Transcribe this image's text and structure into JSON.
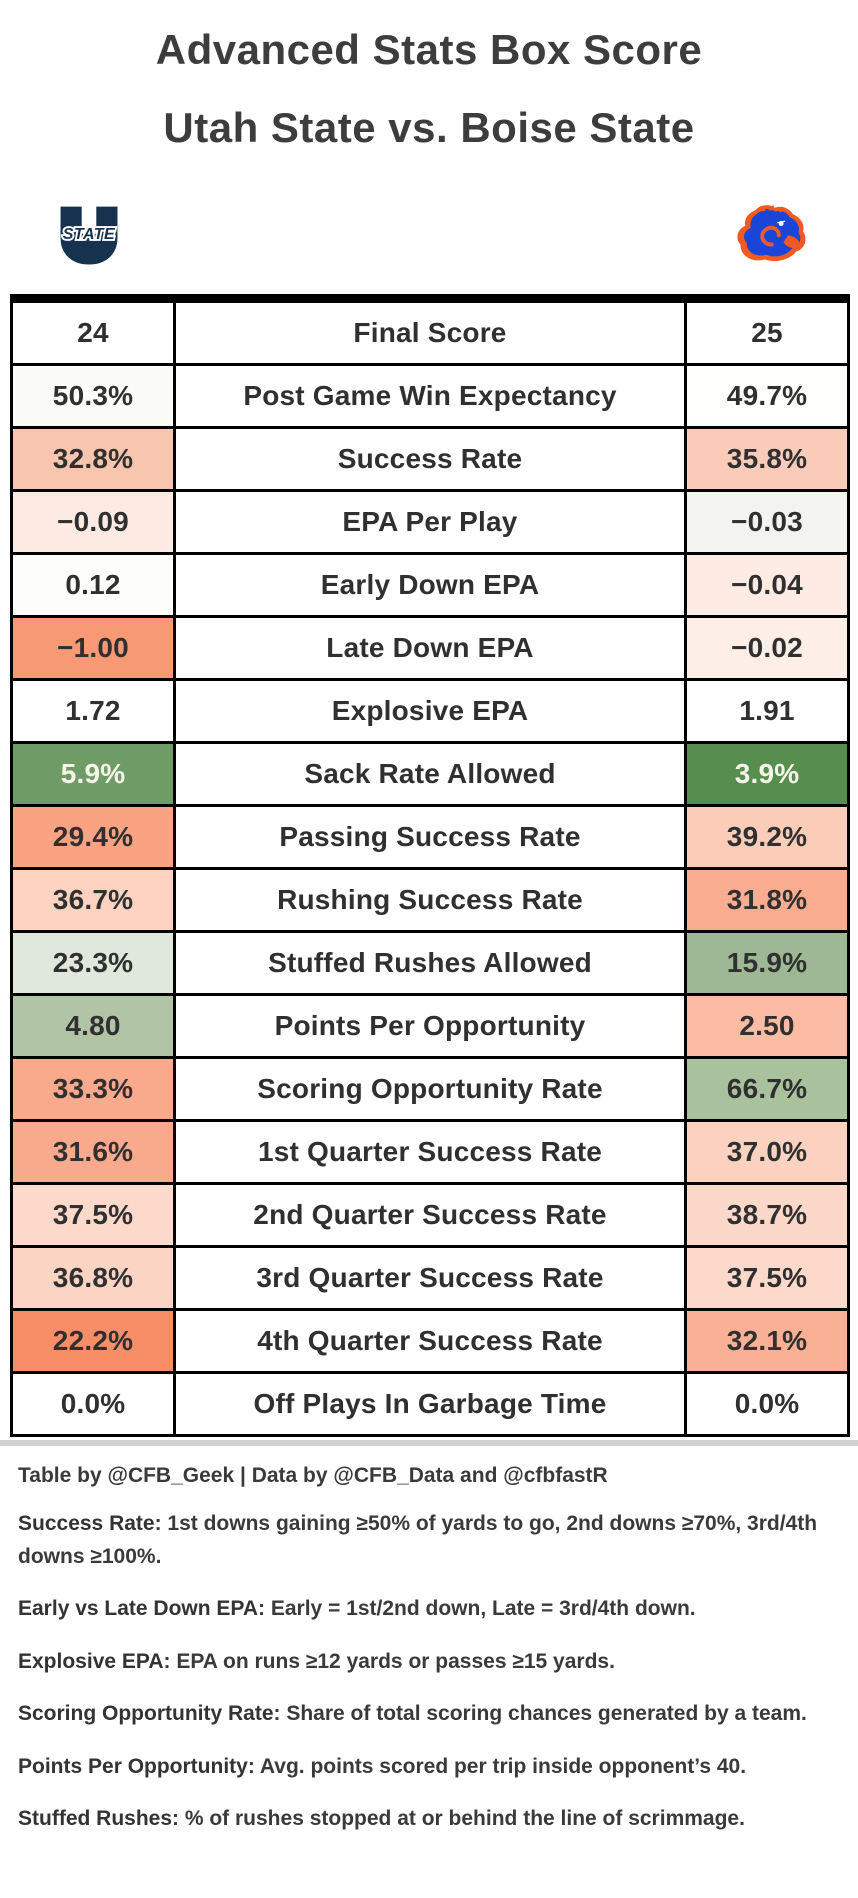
{
  "title": {
    "line1": "Advanced Stats Box Score",
    "line2": "Utah State vs. Boise State"
  },
  "teams": {
    "home": "Utah State",
    "away": "Boise State"
  },
  "logos": {
    "home_label": "STATE",
    "home_navy": "#16324e",
    "away_blue": "#1a46d8",
    "away_orange": "#f15a22"
  },
  "chart_data": {
    "type": "table",
    "title": "Advanced Stats Box Score — Utah State vs. Boise State",
    "columns": [
      "Utah State",
      "Metric",
      "Boise State"
    ],
    "rows": [
      {
        "metric": "Final Score",
        "home": "24",
        "away": "25",
        "home_bg": "#ffffff",
        "away_bg": "#ffffff"
      },
      {
        "metric": "Post Game Win Expectancy",
        "home": "50.3%",
        "away": "49.7%",
        "home_bg": "#fbfbf7",
        "away_bg": "#fefefd"
      },
      {
        "metric": "Success Rate",
        "home": "32.8%",
        "away": "35.8%",
        "home_bg": "#f8c5ae",
        "away_bg": "#f9cbb8"
      },
      {
        "metric": "EPA Per Play",
        "home": "−0.09",
        "away": "−0.03",
        "home_bg": "#fdebe3",
        "away_bg": "#f3f4f0"
      },
      {
        "metric": "Early Down EPA",
        "home": "0.12",
        "away": "−0.04",
        "home_bg": "#fdfdfa",
        "away_bg": "#fdebe4"
      },
      {
        "metric": "Late Down EPA",
        "home": "−1.00",
        "away": "−0.02",
        "home_bg": "#f89976",
        "away_bg": "#fdeee8"
      },
      {
        "metric": "Explosive EPA",
        "home": "1.72",
        "away": "1.91",
        "home_bg": "#ffffff",
        "away_bg": "#ffffff"
      },
      {
        "metric": "Sack Rate Allowed",
        "home": "5.9%",
        "away": "3.9%",
        "home_bg": "#6f9c66",
        "away_bg": "#568e4e",
        "home_fg": "#f7f5ea",
        "away_fg": "#f7f5ea"
      },
      {
        "metric": "Passing Success Rate",
        "home": "29.4%",
        "away": "39.2%",
        "home_bg": "#f9a383",
        "away_bg": "#fbcdb9"
      },
      {
        "metric": "Rushing Success Rate",
        "home": "36.7%",
        "away": "31.8%",
        "home_bg": "#fcd2c0",
        "away_bg": "#f9ac90"
      },
      {
        "metric": "Stuffed Rushes Allowed",
        "home": "23.3%",
        "away": "15.9%",
        "home_bg": "#dfe8da",
        "away_bg": "#9db893"
      },
      {
        "metric": "Points Per Opportunity",
        "home": "4.80",
        "away": "2.50",
        "home_bg": "#b1c4a6",
        "away_bg": "#fcbca4"
      },
      {
        "metric": "Scoring Opportunity Rate",
        "home": "33.3%",
        "away": "66.7%",
        "home_bg": "#f9a98c",
        "away_bg": "#a9c29d"
      },
      {
        "metric": "1st Quarter Success Rate",
        "home": "31.6%",
        "away": "37.0%",
        "home_bg": "#f9aa8c",
        "away_bg": "#fbd1bf"
      },
      {
        "metric": "2nd Quarter Success Rate",
        "home": "37.5%",
        "away": "38.7%",
        "home_bg": "#fcd9ca",
        "away_bg": "#fcd8c9"
      },
      {
        "metric": "3rd Quarter Success Rate",
        "home": "36.8%",
        "away": "37.5%",
        "home_bg": "#fcd4c4",
        "away_bg": "#fcd9ca"
      },
      {
        "metric": "4th Quarter Success Rate",
        "home": "22.2%",
        "away": "32.1%",
        "home_bg": "#f78e68",
        "away_bg": "#f9b095"
      },
      {
        "metric": "Off Plays In Garbage Time",
        "home": "0.0%",
        "away": "0.0%",
        "home_bg": "#ffffff",
        "away_bg": "#ffffff"
      }
    ]
  },
  "credit": "Table by @CFB_Geek | Data by @CFB_Data and @cfbfastR",
  "notes": [
    {
      "term": "Success Rate",
      "definition": ": 1st downs gaining ≥50% of yards to go, 2nd downs ≥70%, 3rd/4th downs ≥100%."
    },
    {
      "term": "Early vs Late Down EPA",
      "definition": ": Early = 1st/2nd down, Late = 3rd/4th down."
    },
    {
      "term": "Explosive EPA",
      "definition": ": EPA on runs ≥12 yards or passes ≥15 yards."
    },
    {
      "term": "Scoring Opportunity Rate",
      "definition": ": Share of total scoring chances generated by a team."
    },
    {
      "term": "Points Per Opportunity",
      "definition": ": Avg. points scored per trip inside opponent’s 40."
    },
    {
      "term": "Stuffed Rushes",
      "definition": ": % of rushes stopped at or behind the line of scrimmage."
    }
  ]
}
